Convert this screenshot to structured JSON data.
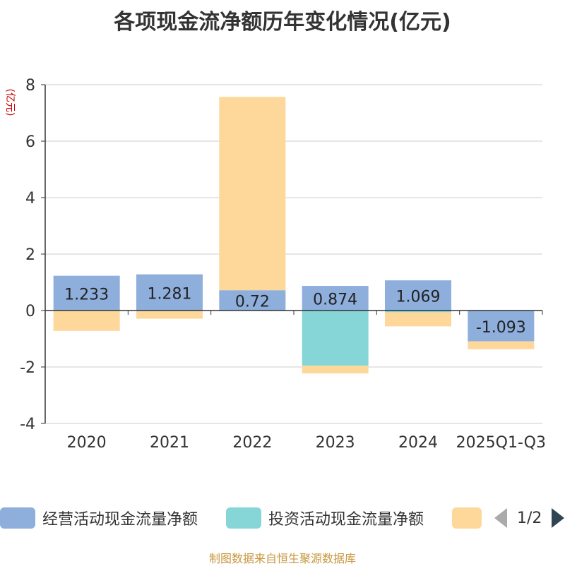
{
  "title": "各项现金流净额历年变化情况(亿元)",
  "source_text": "制图数据来自恒生聚源数据库",
  "pager": {
    "text": "1/2"
  },
  "colors": {
    "operating": "#8eaedc",
    "investing": "#86d6d8",
    "financing": "#fdd89a",
    "axis": "#333333",
    "grid": "#cccccc",
    "unit": "#cc0000"
  },
  "chart_data": {
    "type": "bar",
    "stacked": true,
    "title": "各项现金流净额历年变化情况(亿元)",
    "ylabel": "(亿元)",
    "ylim": [
      -4,
      8
    ],
    "yticks": [
      -4,
      -2,
      0,
      2,
      4,
      6,
      8
    ],
    "categories": [
      "2020",
      "2021",
      "2022",
      "2023",
      "2024",
      "2025Q1-Q3"
    ],
    "series": [
      {
        "name": "经营活动现金流量净额",
        "values": [
          1.233,
          1.281,
          0.72,
          0.874,
          1.069,
          -1.093
        ],
        "labels": [
          "1.233",
          "1.281",
          "0.72",
          "0.874",
          "1.069",
          "-1.093"
        ]
      },
      {
        "name": "投资活动现金流量净额",
        "values": [
          0,
          -0.02,
          0,
          -1.95,
          -0.06,
          0
        ]
      },
      {
        "name": "",
        "values": [
          -0.72,
          -0.27,
          6.85,
          -0.28,
          -0.5,
          -0.28
        ]
      }
    ],
    "legend": [
      "经营活动现金流量净额",
      "投资活动现金流量净额",
      ""
    ]
  }
}
